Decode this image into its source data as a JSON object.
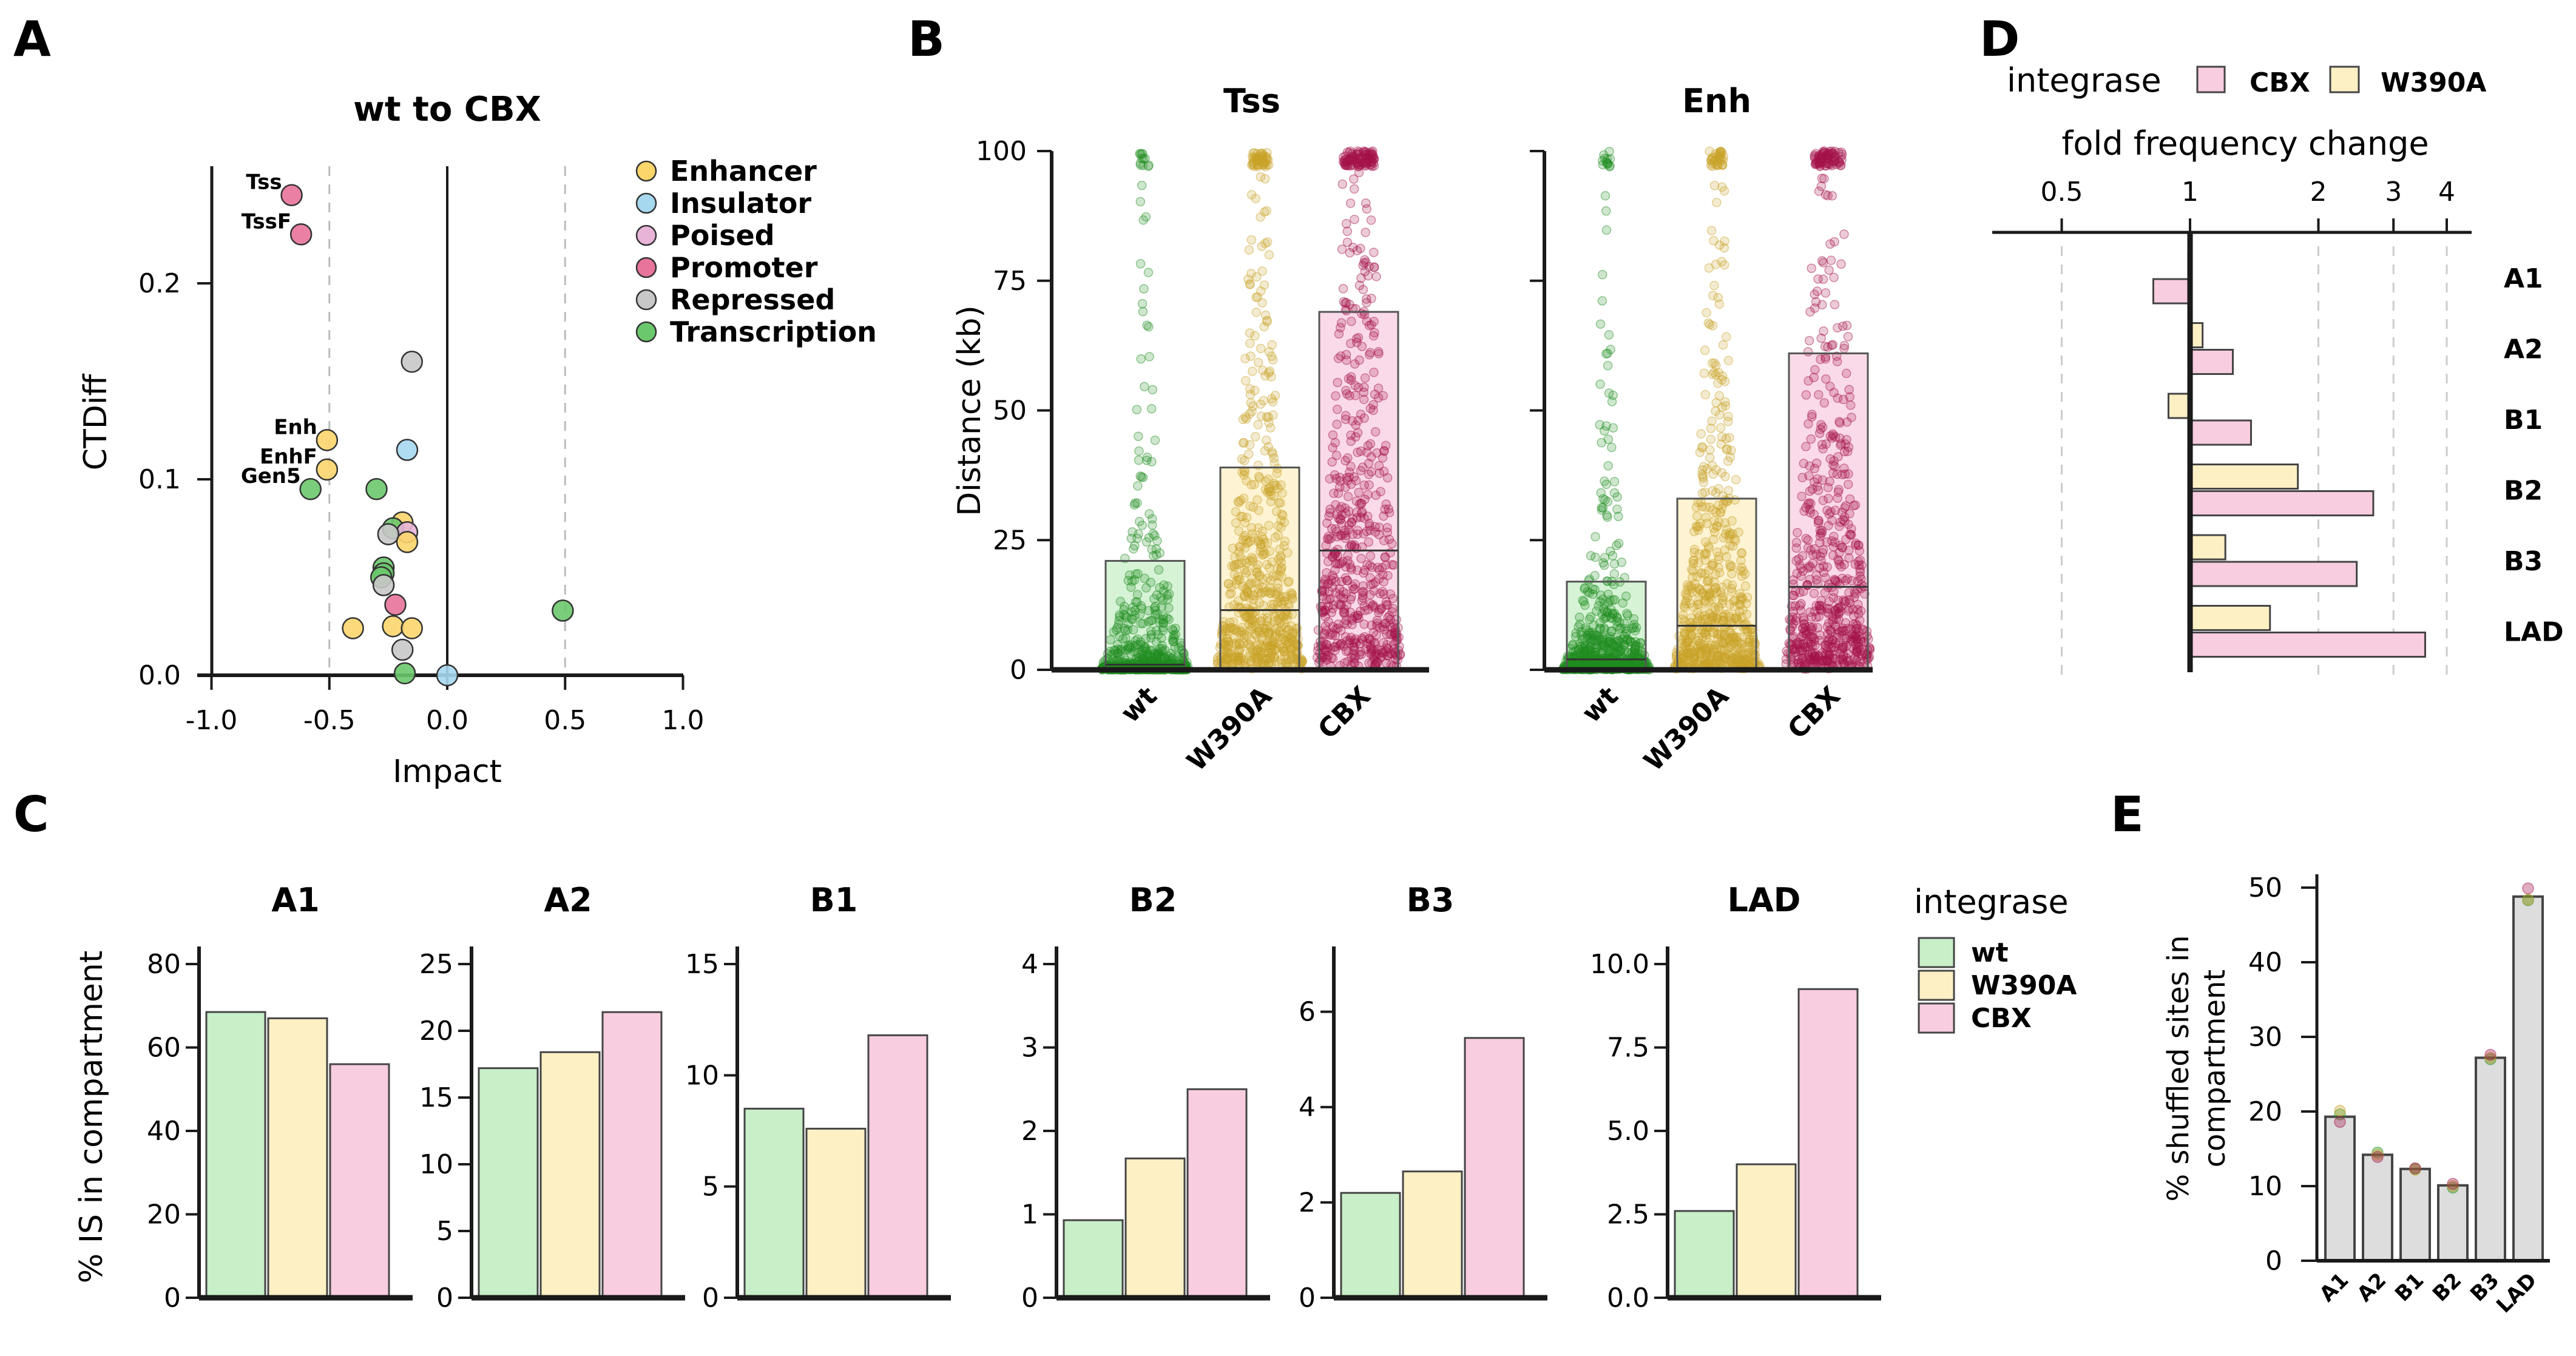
{
  "colors": {
    "wt": "#c8efc8",
    "W390A": "#fdf0c4",
    "CBX": "#f8cde0",
    "wt_dot": "#1e8c1e",
    "W390A_dot": "#c9a227",
    "CBX_dot": "#a3124b",
    "shuffled": "#dddddd"
  },
  "chart_data": [
    {
      "panel": "A",
      "type": "scatter",
      "title": "wt to CBX",
      "xlabel": "Impact",
      "ylabel": "CTDiff",
      "xlim": [
        -1,
        1
      ],
      "ylim": [
        0,
        0.26
      ],
      "xticks": [
        "-1.0",
        "-0.5",
        "0.0",
        "0.5",
        "1.0"
      ],
      "yticks": [
        "0.0",
        "0.1",
        "0.2"
      ],
      "reference_lines": [
        -0.5,
        0.0,
        0.5
      ],
      "legend": [
        {
          "name": "Enhancer",
          "color": "#fcd56b"
        },
        {
          "name": "Insulator",
          "color": "#a6d8f0"
        },
        {
          "name": "Poised",
          "color": "#e8b4d8"
        },
        {
          "name": "Promoter",
          "color": "#e8739b"
        },
        {
          "name": "Repressed",
          "color": "#c8c8c8"
        },
        {
          "name": "Transcription",
          "color": "#6cc86c"
        }
      ],
      "points": [
        {
          "x": -0.66,
          "y": 0.245,
          "state": "Promoter",
          "label": "Tss"
        },
        {
          "x": -0.62,
          "y": 0.225,
          "state": "Promoter",
          "label": "TssF"
        },
        {
          "x": -0.51,
          "y": 0.12,
          "state": "Enhancer",
          "label": "Enh"
        },
        {
          "x": -0.51,
          "y": 0.105,
          "state": "Enhancer",
          "label": "EnhF"
        },
        {
          "x": -0.58,
          "y": 0.095,
          "state": "Transcription",
          "label": "Gen5"
        },
        {
          "x": -0.15,
          "y": 0.16,
          "state": "Repressed"
        },
        {
          "x": -0.17,
          "y": 0.115,
          "state": "Insulator"
        },
        {
          "x": -0.3,
          "y": 0.095,
          "state": "Transcription"
        },
        {
          "x": -0.19,
          "y": 0.078,
          "state": "Enhancer"
        },
        {
          "x": -0.23,
          "y": 0.075,
          "state": "Transcription"
        },
        {
          "x": -0.17,
          "y": 0.073,
          "state": "Poised"
        },
        {
          "x": -0.25,
          "y": 0.072,
          "state": "Repressed"
        },
        {
          "x": -0.17,
          "y": 0.068,
          "state": "Enhancer"
        },
        {
          "x": -0.27,
          "y": 0.055,
          "state": "Transcription"
        },
        {
          "x": -0.27,
          "y": 0.052,
          "state": "Transcription"
        },
        {
          "x": -0.28,
          "y": 0.05,
          "state": "Transcription"
        },
        {
          "x": -0.27,
          "y": 0.046,
          "state": "Repressed"
        },
        {
          "x": -0.22,
          "y": 0.036,
          "state": "Promoter"
        },
        {
          "x": 0.49,
          "y": 0.033,
          "state": "Transcription"
        },
        {
          "x": -0.4,
          "y": 0.024,
          "state": "Enhancer"
        },
        {
          "x": -0.23,
          "y": 0.025,
          "state": "Enhancer"
        },
        {
          "x": -0.15,
          "y": 0.024,
          "state": "Enhancer"
        },
        {
          "x": -0.19,
          "y": 0.013,
          "state": "Repressed"
        },
        {
          "x": -0.18,
          "y": 0.001,
          "state": "Transcription"
        },
        {
          "x": 0.0,
          "y": 0.0,
          "state": "Insulator"
        }
      ]
    },
    {
      "panel": "B",
      "type": "bar",
      "ylabel": "Distance (kb)",
      "ylim": [
        0,
        100
      ],
      "yticks": [
        "0",
        "25",
        "50",
        "75",
        "100"
      ],
      "facets": [
        {
          "title": "Tss",
          "groups": [
            {
              "name": "wt",
              "bar": 21,
              "median": 1
            },
            {
              "name": "W390A",
              "bar": 39,
              "median": 11.5
            },
            {
              "name": "CBX",
              "bar": 69,
              "median": 23
            }
          ]
        },
        {
          "title": "Enh",
          "groups": [
            {
              "name": "wt",
              "bar": 17,
              "median": 2
            },
            {
              "name": "W390A",
              "bar": 33,
              "median": 8.5
            },
            {
              "name": "CBX",
              "bar": 61,
              "median": 16
            }
          ]
        }
      ]
    },
    {
      "panel": "C",
      "type": "bar",
      "ylabel": "% IS in compartment",
      "legend_title": "integrase",
      "legend": [
        "wt",
        "W390A",
        "CBX"
      ],
      "facets": [
        {
          "title": "A1",
          "ylim": [
            0,
            80
          ],
          "yticks": [
            "0",
            "20",
            "40",
            "60",
            "80"
          ],
          "values": [
            68.5,
            67,
            56
          ]
        },
        {
          "title": "A2",
          "ylim": [
            0,
            25
          ],
          "yticks": [
            "0",
            "5",
            "10",
            "15",
            "20",
            "25"
          ],
          "values": [
            17.2,
            18.4,
            21.4
          ]
        },
        {
          "title": "B1",
          "ylim": [
            0,
            15
          ],
          "yticks": [
            "0",
            "5",
            "10",
            "15"
          ],
          "values": [
            8.5,
            7.6,
            11.8
          ]
        },
        {
          "title": "B2",
          "ylim": [
            0,
            4
          ],
          "yticks": [
            "0",
            "1",
            "2",
            "3",
            "4"
          ],
          "values": [
            0.93,
            1.67,
            2.5
          ]
        },
        {
          "title": "B3",
          "ylim": [
            0,
            7
          ],
          "yticks": [
            "0",
            "2",
            "4",
            "6"
          ],
          "values": [
            2.2,
            2.65,
            5.45
          ]
        },
        {
          "title": "LAD",
          "ylim": [
            0,
            10
          ],
          "yticks": [
            "0.0",
            "2.5",
            "5.0",
            "7.5",
            "10.0"
          ],
          "values": [
            2.6,
            4.0,
            9.25
          ]
        }
      ]
    },
    {
      "panel": "D",
      "type": "bar",
      "title": "fold frequency change",
      "scale": "log",
      "legend_title": "integrase",
      "legend": [
        "CBX",
        "W390A"
      ],
      "xticks": [
        "0.5",
        "1",
        "2",
        "3",
        "4"
      ],
      "categories": [
        "A1",
        "A2",
        "B1",
        "B2",
        "B3",
        "LAD"
      ],
      "series": [
        {
          "name": "W390A",
          "values": [
            0.99,
            1.07,
            0.89,
            1.79,
            1.21,
            1.54
          ]
        },
        {
          "name": "CBX",
          "values": [
            0.82,
            1.26,
            1.39,
            2.69,
            2.46,
            3.56
          ]
        }
      ]
    },
    {
      "panel": "E",
      "type": "bar",
      "ylabel_lines": [
        "% shuffled sites in",
        "compartment"
      ],
      "ylim": [
        0,
        50
      ],
      "yticks": [
        "0",
        "10",
        "20",
        "30",
        "40",
        "50"
      ],
      "categories": [
        "A1",
        "A2",
        "B1",
        "B2",
        "B3",
        "LAD"
      ],
      "values": [
        19.3,
        14.2,
        12.3,
        10.1,
        27.2,
        48.8
      ],
      "replicates": [
        [
          19.6,
          20.1,
          18.6
        ],
        [
          14.5,
          14.2,
          13.9
        ],
        [
          12.3,
          12.2,
          12.4
        ],
        [
          9.8,
          10.0,
          10.3
        ],
        [
          27.0,
          27.2,
          27.6
        ],
        [
          48.3,
          48.4,
          49.9
        ]
      ]
    }
  ]
}
